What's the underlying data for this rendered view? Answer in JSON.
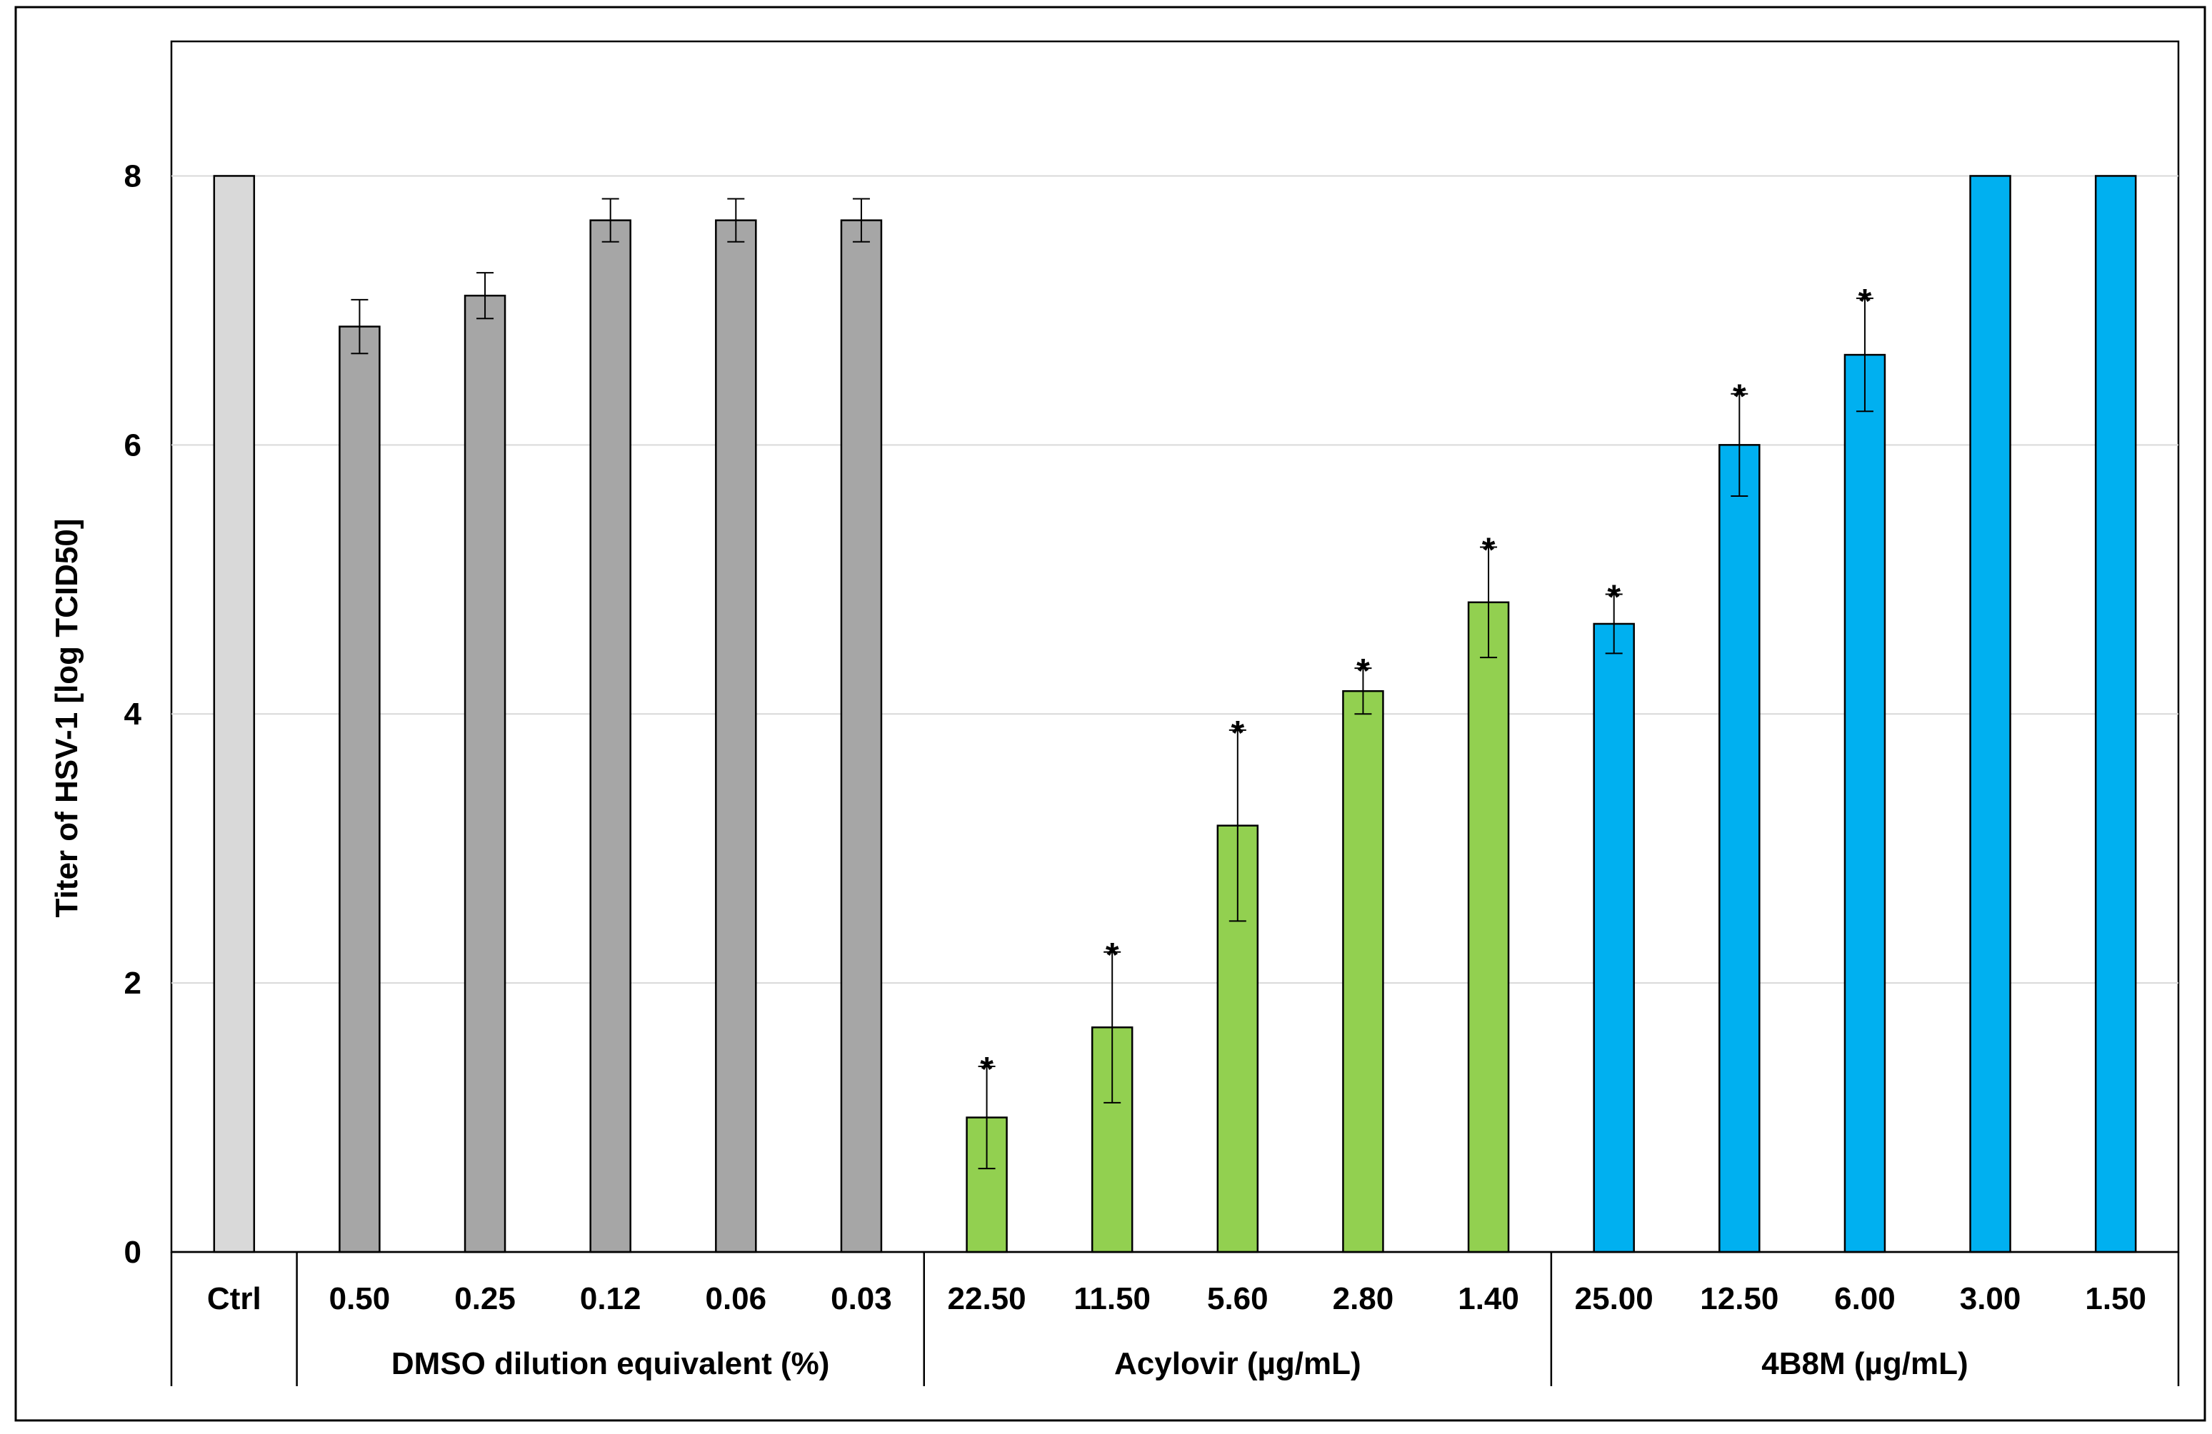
{
  "chart_data": {
    "type": "bar",
    "ylabel": "Titer of HSV-1 [log TCID50]",
    "ylim": [
      0,
      9
    ],
    "yticks": [
      0,
      2,
      4,
      6,
      8
    ],
    "grid": true,
    "categories": [
      "Ctrl",
      "0.50",
      "0.25",
      "0.12",
      "0.06",
      "0.03",
      "22.50",
      "11.50",
      "5.60",
      "2.80",
      "1.40",
      "25.00",
      "12.50",
      "6.00",
      "3.00",
      "1.50"
    ],
    "values": [
      8.0,
      6.88,
      7.11,
      7.67,
      7.67,
      7.67,
      1.0,
      1.67,
      3.17,
      4.17,
      4.83,
      4.67,
      6.0,
      6.67,
      8.0,
      8.0
    ],
    "errors": [
      0,
      0.2,
      0.17,
      0.16,
      0.16,
      0.16,
      0.38,
      0.56,
      0.71,
      0.17,
      0.41,
      0.22,
      0.38,
      0.42,
      0,
      0
    ],
    "significant": [
      false,
      false,
      false,
      false,
      false,
      false,
      true,
      true,
      true,
      true,
      true,
      true,
      true,
      true,
      false,
      false
    ],
    "significance_marker": "*",
    "bar_colors": [
      "#d9d9d9",
      "#a6a6a6",
      "#a6a6a6",
      "#a6a6a6",
      "#a6a6a6",
      "#a6a6a6",
      "#92d050",
      "#92d050",
      "#92d050",
      "#92d050",
      "#92d050",
      "#00b0f0",
      "#00b0f0",
      "#00b0f0",
      "#00b0f0",
      "#00b0f0"
    ],
    "groups": [
      {
        "label": "",
        "start": 0,
        "end": 0
      },
      {
        "label": "DMSO dilution equivalent (%)",
        "start": 1,
        "end": 5
      },
      {
        "label": "Acylovir  (µg/mL)",
        "start": 6,
        "end": 10
      },
      {
        "label": "4B8M (µg/mL)",
        "start": 11,
        "end": 15
      }
    ]
  }
}
